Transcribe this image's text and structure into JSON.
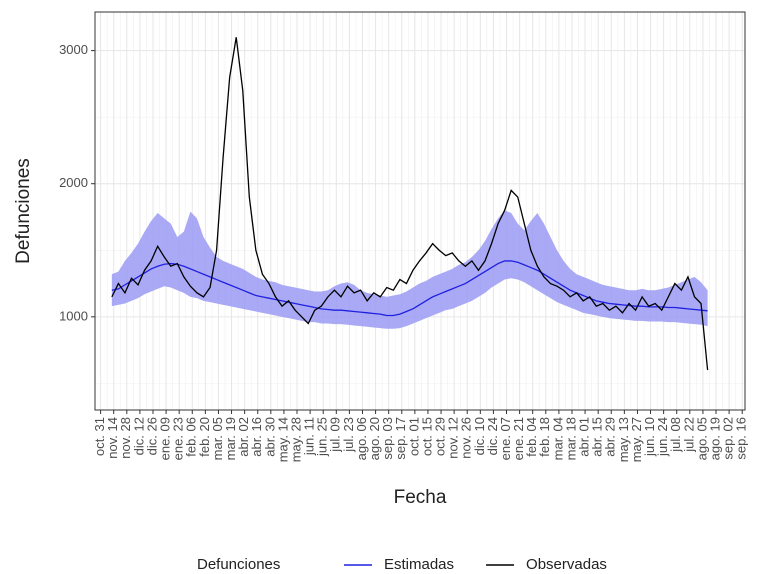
{
  "chart_data": {
    "type": "line",
    "x_label": "Fecha",
    "y_label": "Defunciones",
    "legend_title": "Defunciones",
    "legend_position": "bottom",
    "grid": true,
    "x": [
      12,
      19,
      26,
      33,
      40,
      47,
      54,
      61,
      68,
      75,
      82,
      89,
      96,
      103,
      110,
      117,
      124,
      131,
      138,
      145,
      152,
      159,
      166,
      173,
      180,
      187,
      194,
      201,
      208,
      215,
      222,
      229,
      236,
      243,
      250,
      257,
      264,
      271,
      278,
      285,
      292,
      299,
      306,
      313,
      320,
      327,
      334,
      341,
      348,
      355,
      362,
      369,
      376,
      383,
      390,
      397,
      404,
      411,
      418,
      425,
      432,
      439,
      446,
      453,
      460,
      467,
      474,
      481,
      488,
      495,
      502,
      509,
      516,
      523,
      530,
      537,
      544,
      551,
      558,
      565,
      572,
      579,
      586,
      593,
      600,
      607,
      614,
      621,
      628,
      635,
      642,
      649
    ],
    "series": [
      {
        "name": "Estimadas",
        "color": "#2020e0",
        "values": [
          1200,
          1210,
          1240,
          1270,
          1300,
          1330,
          1360,
          1380,
          1395,
          1400,
          1395,
          1380,
          1360,
          1340,
          1320,
          1300,
          1280,
          1260,
          1240,
          1220,
          1200,
          1180,
          1160,
          1150,
          1140,
          1130,
          1120,
          1110,
          1100,
          1090,
          1080,
          1070,
          1060,
          1055,
          1050,
          1050,
          1045,
          1040,
          1035,
          1030,
          1025,
          1020,
          1010,
          1010,
          1020,
          1040,
          1060,
          1090,
          1120,
          1150,
          1170,
          1190,
          1210,
          1230,
          1250,
          1280,
          1310,
          1340,
          1370,
          1400,
          1420,
          1420,
          1410,
          1390,
          1370,
          1350,
          1320,
          1290,
          1260,
          1230,
          1200,
          1180,
          1160,
          1140,
          1120,
          1110,
          1100,
          1095,
          1090,
          1085,
          1080,
          1080,
          1075,
          1075,
          1075,
          1070,
          1070,
          1065,
          1060,
          1055,
          1050,
          1045
        ]
      },
      {
        "name": "Observadas",
        "color": "#000000",
        "values": [
          1150,
          1250,
          1180,
          1290,
          1240,
          1350,
          1420,
          1530,
          1450,
          1380,
          1400,
          1300,
          1230,
          1180,
          1150,
          1220,
          1500,
          2200,
          2800,
          3100,
          2700,
          1900,
          1500,
          1320,
          1250,
          1150,
          1080,
          1120,
          1050,
          1000,
          950,
          1050,
          1080,
          1150,
          1200,
          1150,
          1230,
          1180,
          1200,
          1120,
          1180,
          1150,
          1220,
          1200,
          1280,
          1250,
          1350,
          1420,
          1480,
          1550,
          1500,
          1460,
          1480,
          1420,
          1380,
          1420,
          1350,
          1420,
          1550,
          1700,
          1800,
          1950,
          1900,
          1700,
          1500,
          1380,
          1300,
          1250,
          1230,
          1200,
          1150,
          1180,
          1120,
          1150,
          1080,
          1100,
          1050,
          1080,
          1030,
          1100,
          1050,
          1150,
          1080,
          1100,
          1050,
          1150,
          1250,
          1200,
          1300,
          1150,
          1100,
          600
        ]
      }
    ],
    "band": {
      "color": "#9a9af5",
      "lower": [
        1080,
        1090,
        1100,
        1120,
        1140,
        1170,
        1190,
        1210,
        1230,
        1220,
        1200,
        1180,
        1150,
        1140,
        1120,
        1110,
        1100,
        1090,
        1080,
        1070,
        1060,
        1050,
        1040,
        1030,
        1020,
        1010,
        1000,
        990,
        980,
        970,
        960,
        960,
        950,
        950,
        945,
        945,
        940,
        935,
        930,
        925,
        920,
        915,
        910,
        910,
        915,
        930,
        950,
        970,
        990,
        1010,
        1030,
        1050,
        1060,
        1080,
        1100,
        1120,
        1150,
        1180,
        1220,
        1250,
        1280,
        1290,
        1280,
        1260,
        1230,
        1200,
        1170,
        1140,
        1110,
        1090,
        1070,
        1050,
        1030,
        1020,
        1010,
        1000,
        990,
        985,
        980,
        975,
        970,
        970,
        965,
        965,
        965,
        960,
        960,
        955,
        950,
        945,
        940,
        930
      ],
      "upper": [
        1320,
        1340,
        1420,
        1480,
        1550,
        1640,
        1720,
        1780,
        1740,
        1700,
        1600,
        1640,
        1790,
        1740,
        1600,
        1520,
        1450,
        1420,
        1400,
        1380,
        1360,
        1330,
        1300,
        1280,
        1270,
        1260,
        1240,
        1230,
        1220,
        1210,
        1200,
        1190,
        1190,
        1200,
        1230,
        1250,
        1260,
        1240,
        1200,
        1180,
        1170,
        1160,
        1150,
        1160,
        1170,
        1190,
        1220,
        1250,
        1270,
        1300,
        1320,
        1340,
        1360,
        1390,
        1410,
        1450,
        1500,
        1570,
        1660,
        1740,
        1800,
        1780,
        1700,
        1650,
        1720,
        1780,
        1700,
        1600,
        1500,
        1420,
        1360,
        1320,
        1300,
        1280,
        1260,
        1240,
        1230,
        1220,
        1210,
        1200,
        1200,
        1210,
        1200,
        1200,
        1210,
        1220,
        1240,
        1260,
        1280,
        1300,
        1260,
        1200
      ]
    },
    "xlim": [
      -6,
      689
    ],
    "ylim": [
      300,
      3290
    ],
    "yticks": [
      1000,
      2000,
      3000
    ],
    "xticks": [
      {
        "value": 0,
        "label": "oct. 31"
      },
      {
        "value": 14,
        "label": "nov. 14"
      },
      {
        "value": 28,
        "label": "nov. 28"
      },
      {
        "value": 42,
        "label": "dic. 12"
      },
      {
        "value": 56,
        "label": "dic. 26"
      },
      {
        "value": 70,
        "label": "ene. 09"
      },
      {
        "value": 84,
        "label": "ene. 23"
      },
      {
        "value": 98,
        "label": "feb. 06"
      },
      {
        "value": 112,
        "label": "feb. 20"
      },
      {
        "value": 126,
        "label": "mar. 05"
      },
      {
        "value": 140,
        "label": "mar. 19"
      },
      {
        "value": 154,
        "label": "abr. 02"
      },
      {
        "value": 168,
        "label": "abr. 16"
      },
      {
        "value": 182,
        "label": "abr. 30"
      },
      {
        "value": 196,
        "label": "may. 14"
      },
      {
        "value": 210,
        "label": "may. 28"
      },
      {
        "value": 224,
        "label": "jun. 11"
      },
      {
        "value": 238,
        "label": "jun. 25"
      },
      {
        "value": 252,
        "label": "jul. 09"
      },
      {
        "value": 266,
        "label": "jul. 23"
      },
      {
        "value": 280,
        "label": "ago. 06"
      },
      {
        "value": 294,
        "label": "ago. 20"
      },
      {
        "value": 308,
        "label": "sep. 03"
      },
      {
        "value": 322,
        "label": "sep. 17"
      },
      {
        "value": 336,
        "label": "oct. 01"
      },
      {
        "value": 350,
        "label": "oct. 15"
      },
      {
        "value": 364,
        "label": "oct. 29"
      },
      {
        "value": 378,
        "label": "nov. 12"
      },
      {
        "value": 392,
        "label": "nov. 26"
      },
      {
        "value": 406,
        "label": "dic. 10"
      },
      {
        "value": 420,
        "label": "dic. 24"
      },
      {
        "value": 434,
        "label": "ene. 07"
      },
      {
        "value": 448,
        "label": "ene. 21"
      },
      {
        "value": 462,
        "label": "feb. 04"
      },
      {
        "value": 476,
        "label": "feb. 18"
      },
      {
        "value": 490,
        "label": "mar. 04"
      },
      {
        "value": 504,
        "label": "mar. 18"
      },
      {
        "value": 518,
        "label": "abr. 01"
      },
      {
        "value": 532,
        "label": "abr. 15"
      },
      {
        "value": 546,
        "label": "abr. 29"
      },
      {
        "value": 560,
        "label": "may. 13"
      },
      {
        "value": 574,
        "label": "may. 27"
      },
      {
        "value": 588,
        "label": "jun. 10"
      },
      {
        "value": 602,
        "label": "jun. 24"
      },
      {
        "value": 616,
        "label": "jul. 08"
      },
      {
        "value": 630,
        "label": "jul. 22"
      },
      {
        "value": 644,
        "label": "ago. 05"
      },
      {
        "value": 658,
        "label": "ago. 19"
      },
      {
        "value": 672,
        "label": "sep. 02"
      },
      {
        "value": 686,
        "label": "sep. 16"
      }
    ]
  }
}
